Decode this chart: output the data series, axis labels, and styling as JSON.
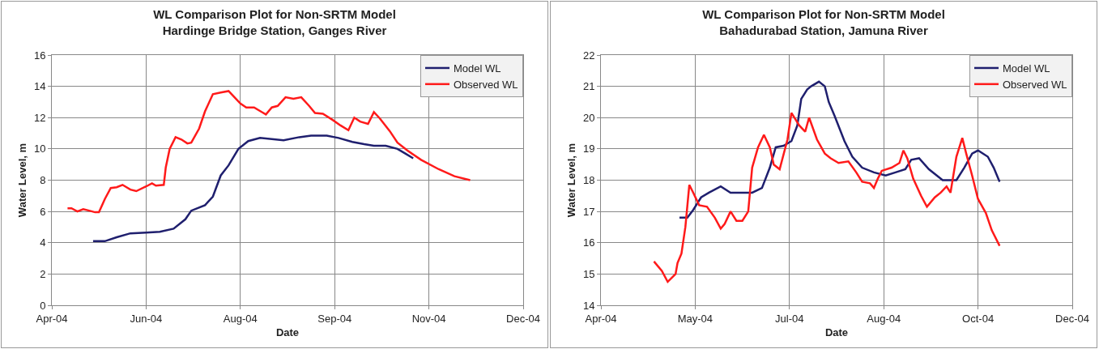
{
  "chart_data": [
    {
      "type": "line",
      "title": "WL Comparison Plot for Non-SRTM Model",
      "subtitle": "Hardinge Bridge Station, Ganges River",
      "xlabel": "Date",
      "ylabel": "Water Level, m",
      "xlim": [
        "2004-04-28",
        "2004-12-24"
      ],
      "xticks": [
        {
          "value": "2004-04-28",
          "label": "Apr-04"
        },
        {
          "value": "2004-06-15",
          "label": "Jun-04"
        },
        {
          "value": "2004-08-02",
          "label": "Aug-04"
        },
        {
          "value": "2004-09-19",
          "label": "Sep-04"
        },
        {
          "value": "2004-11-06",
          "label": "Nov-04"
        },
        {
          "value": "2004-12-24",
          "label": "Dec-04"
        }
      ],
      "ylim": [
        0,
        16
      ],
      "yticks": [
        0,
        2,
        4,
        6,
        8,
        10,
        12,
        14,
        16
      ],
      "grid": true,
      "legend": "top right",
      "marker": "none",
      "line_style": "solid",
      "series": [
        {
          "name": "Model WL",
          "color": "#1f1f6e",
          "x": [
            "2004-05-19",
            "2004-05-25",
            "2004-05-31",
            "2004-06-07",
            "2004-06-15",
            "2004-06-22",
            "2004-06-29",
            "2004-07-05",
            "2004-07-08",
            "2004-07-15",
            "2004-07-19",
            "2004-07-23",
            "2004-07-27",
            "2004-08-01",
            "2004-08-06",
            "2004-08-12",
            "2004-08-24",
            "2004-09-01",
            "2004-09-07",
            "2004-09-15",
            "2004-09-21",
            "2004-09-28",
            "2004-10-04",
            "2004-10-09",
            "2004-10-15",
            "2004-10-21",
            "2004-10-25",
            "2004-10-29"
          ],
          "values": [
            4.1,
            4.1,
            4.35,
            4.6,
            4.65,
            4.7,
            4.9,
            5.5,
            6.05,
            6.4,
            6.95,
            8.3,
            8.95,
            10.0,
            10.5,
            10.7,
            10.55,
            10.75,
            10.85,
            10.85,
            10.7,
            10.45,
            10.3,
            10.2,
            10.2,
            10.0,
            9.7,
            9.4
          ]
        },
        {
          "name": "Observed WL",
          "color": "#ff1a1a",
          "x": [
            "2004-05-06",
            "2004-05-08",
            "2004-05-11",
            "2004-05-14",
            "2004-05-17",
            "2004-05-20",
            "2004-05-22",
            "2004-05-25",
            "2004-05-28",
            "2004-05-31",
            "2004-06-03",
            "2004-06-07",
            "2004-06-10",
            "2004-06-15",
            "2004-06-18",
            "2004-06-20",
            "2004-06-24",
            "2004-06-25",
            "2004-06-27",
            "2004-06-30",
            "2004-07-03",
            "2004-07-06",
            "2004-07-08",
            "2004-07-12",
            "2004-07-15",
            "2004-07-19",
            "2004-07-23",
            "2004-07-27",
            "2004-07-30",
            "2004-08-02",
            "2004-08-05",
            "2004-08-09",
            "2004-08-13",
            "2004-08-15",
            "2004-08-18",
            "2004-08-21",
            "2004-08-25",
            "2004-08-29",
            "2004-09-02",
            "2004-09-06",
            "2004-09-09",
            "2004-09-13",
            "2004-09-18",
            "2004-09-22",
            "2004-09-26",
            "2004-09-29",
            "2004-10-02",
            "2004-10-06",
            "2004-10-09",
            "2004-10-12",
            "2004-10-17",
            "2004-10-21",
            "2004-10-26",
            "2004-11-02",
            "2004-11-11",
            "2004-11-19",
            "2004-11-27"
          ],
          "values": [
            6.2,
            6.2,
            6.0,
            6.15,
            6.05,
            5.95,
            5.95,
            6.8,
            7.5,
            7.55,
            7.7,
            7.4,
            7.3,
            7.6,
            7.8,
            7.65,
            7.7,
            8.8,
            10.0,
            10.75,
            10.6,
            10.35,
            10.4,
            11.3,
            12.4,
            13.5,
            13.6,
            13.7,
            13.3,
            12.9,
            12.65,
            12.65,
            12.35,
            12.2,
            12.65,
            12.75,
            13.3,
            13.2,
            13.3,
            12.75,
            12.3,
            12.25,
            11.85,
            11.5,
            11.2,
            12.0,
            11.75,
            11.6,
            12.35,
            11.95,
            11.15,
            10.4,
            9.9,
            9.3,
            8.7,
            8.25,
            8.0
          ]
        }
      ]
    },
    {
      "type": "line",
      "title": "WL Comparison Plot for Non-SRTM Model",
      "subtitle": "Bahadurabad Station, Jamuna River",
      "xlabel": "Date",
      "ylabel": "Water Level, m",
      "xlim": [
        "2004-04-05",
        "2004-12-01"
      ],
      "xticks": [
        {
          "value": "2004-04-05",
          "label": "Apr-04"
        },
        {
          "value": "2004-05-23",
          "label": "May-04"
        },
        {
          "value": "2004-07-10",
          "label": "Jul-04"
        },
        {
          "value": "2004-08-27",
          "label": "Aug-04"
        },
        {
          "value": "2004-10-14",
          "label": "Oct-04"
        },
        {
          "value": "2004-12-01",
          "label": "Dec-04"
        }
      ],
      "ylim": [
        14,
        22
      ],
      "yticks": [
        14,
        15,
        16,
        17,
        18,
        19,
        20,
        21,
        22
      ],
      "grid": true,
      "legend": "top right",
      "marker": "none",
      "line_style": "solid",
      "series": [
        {
          "name": "Model WL",
          "color": "#1f1f6e",
          "x": [
            "2004-05-15",
            "2004-05-19",
            "2004-05-22",
            "2004-05-26",
            "2004-05-30",
            "2004-06-05",
            "2004-06-10",
            "2004-06-16",
            "2004-06-21",
            "2004-06-26",
            "2004-06-30",
            "2004-07-03",
            "2004-07-07",
            "2004-07-11",
            "2004-07-14",
            "2004-07-16",
            "2004-07-19",
            "2004-07-21",
            "2004-07-25",
            "2004-07-28",
            "2004-07-30",
            "2004-08-02",
            "2004-08-07",
            "2004-08-11",
            "2004-08-16",
            "2004-08-22",
            "2004-08-28",
            "2004-09-02",
            "2004-09-07",
            "2004-09-10",
            "2004-09-14",
            "2004-09-19",
            "2004-09-26",
            "2004-10-03",
            "2004-10-07",
            "2004-10-11",
            "2004-10-14",
            "2004-10-19",
            "2004-10-22",
            "2004-10-25"
          ],
          "values": [
            16.8,
            16.8,
            17.05,
            17.45,
            17.6,
            17.8,
            17.6,
            17.6,
            17.6,
            17.75,
            18.4,
            19.05,
            19.1,
            19.25,
            19.75,
            20.6,
            20.9,
            21.0,
            21.15,
            21.0,
            20.5,
            20.05,
            19.25,
            18.75,
            18.4,
            18.25,
            18.15,
            18.25,
            18.35,
            18.65,
            18.7,
            18.35,
            18.0,
            18.0,
            18.4,
            18.85,
            18.95,
            18.75,
            18.4,
            17.95
          ]
        },
        {
          "name": "Observed WL",
          "color": "#ff1a1a",
          "x": [
            "2004-05-02",
            "2004-05-06",
            "2004-05-09",
            "2004-05-13",
            "2004-05-14",
            "2004-05-16",
            "2004-05-18",
            "2004-05-20",
            "2004-05-22",
            "2004-05-25",
            "2004-05-29",
            "2004-06-02",
            "2004-06-05",
            "2004-06-07",
            "2004-06-10",
            "2004-06-13",
            "2004-06-16",
            "2004-06-19",
            "2004-06-21",
            "2004-06-24",
            "2004-06-27",
            "2004-06-30",
            "2004-07-02",
            "2004-07-05",
            "2004-07-09",
            "2004-07-11",
            "2004-07-15",
            "2004-07-18",
            "2004-07-20",
            "2004-07-24",
            "2004-07-28",
            "2004-07-31",
            "2004-08-04",
            "2004-08-09",
            "2004-08-13",
            "2004-08-16",
            "2004-08-20",
            "2004-08-22",
            "2004-08-24",
            "2004-08-26",
            "2004-08-31",
            "2004-09-04",
            "2004-09-06",
            "2004-09-08",
            "2004-09-11",
            "2004-09-15",
            "2004-09-18",
            "2004-09-22",
            "2004-09-25",
            "2004-09-28",
            "2004-09-30",
            "2004-10-03",
            "2004-10-06",
            "2004-10-08",
            "2004-10-11",
            "2004-10-14",
            "2004-10-18",
            "2004-10-21",
            "2004-10-25"
          ],
          "values": [
            15.4,
            15.1,
            14.75,
            15.0,
            15.35,
            15.65,
            16.5,
            17.85,
            17.6,
            17.2,
            17.15,
            16.8,
            16.45,
            16.6,
            17.0,
            16.7,
            16.7,
            17.0,
            18.4,
            19.05,
            19.45,
            19.05,
            18.5,
            18.35,
            19.3,
            20.15,
            19.75,
            19.55,
            20.0,
            19.3,
            18.85,
            18.7,
            18.55,
            18.6,
            18.25,
            17.95,
            17.9,
            17.75,
            18.05,
            18.3,
            18.4,
            18.55,
            18.95,
            18.7,
            18.05,
            17.5,
            17.15,
            17.45,
            17.6,
            17.8,
            17.6,
            18.75,
            19.35,
            18.85,
            18.15,
            17.4,
            16.95,
            16.4,
            15.9
          ]
        }
      ]
    }
  ]
}
